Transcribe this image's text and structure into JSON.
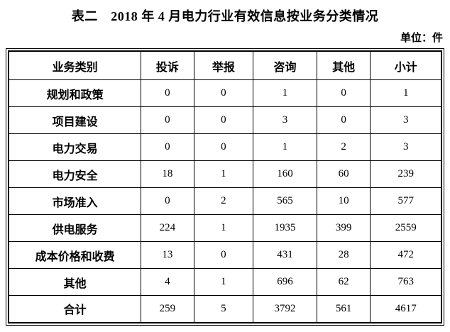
{
  "title": "表二　2018 年 4 月电力行业有效信息按业务分类情况",
  "unit_label": "单位：件",
  "colors": {
    "text": "#000000",
    "background": "#ffffff",
    "border": "#000000"
  },
  "table": {
    "columns": [
      "业务类别",
      "投诉",
      "举报",
      "咨询",
      "其他",
      "小计"
    ],
    "rows": [
      {
        "label": "规划和政策",
        "values": [
          "0",
          "0",
          "1",
          "0",
          "1"
        ]
      },
      {
        "label": "项目建设",
        "values": [
          "0",
          "0",
          "3",
          "0",
          "3"
        ]
      },
      {
        "label": "电力交易",
        "values": [
          "0",
          "0",
          "1",
          "2",
          "3"
        ]
      },
      {
        "label": "电力安全",
        "values": [
          "18",
          "1",
          "160",
          "60",
          "239"
        ]
      },
      {
        "label": "市场准入",
        "values": [
          "0",
          "2",
          "565",
          "10",
          "577"
        ]
      },
      {
        "label": "供电服务",
        "values": [
          "224",
          "1",
          "1935",
          "399",
          "2559"
        ]
      },
      {
        "label": "成本价格和收费",
        "values": [
          "13",
          "0",
          "431",
          "28",
          "472"
        ]
      },
      {
        "label": "其他",
        "values": [
          "4",
          "1",
          "696",
          "62",
          "763"
        ]
      },
      {
        "label": "合计",
        "values": [
          "259",
          "5",
          "3792",
          "561",
          "4617"
        ]
      }
    ]
  }
}
